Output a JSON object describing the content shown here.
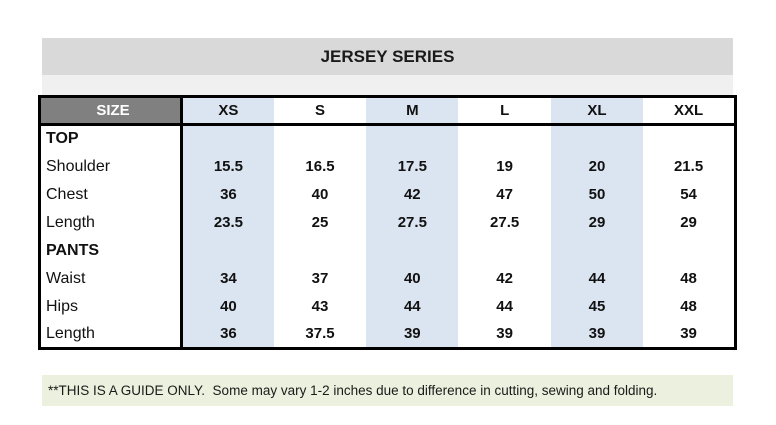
{
  "title": "JERSEY SERIES",
  "table": {
    "header": {
      "label": "SIZE",
      "columns": [
        "XS",
        "S",
        "M",
        "L",
        "XL",
        "XXL"
      ]
    },
    "shaded_columns": [
      "XS",
      "M",
      "XL"
    ],
    "sections": [
      {
        "label": "TOP",
        "rows": [
          {
            "label": "Shoulder",
            "values": [
              "15.5",
              "16.5",
              "17.5",
              "19",
              "20",
              "21.5"
            ]
          },
          {
            "label": "Chest",
            "values": [
              "36",
              "40",
              "42",
              "47",
              "50",
              "54"
            ]
          },
          {
            "label": "Length",
            "values": [
              "23.5",
              "25",
              "27.5",
              "27.5",
              "29",
              "29"
            ]
          }
        ]
      },
      {
        "label": "PANTS",
        "rows": [
          {
            "label": "Waist",
            "values": [
              "34",
              "37",
              "40",
              "42",
              "44",
              "48"
            ]
          },
          {
            "label": "Hips",
            "values": [
              "40",
              "43",
              "44",
              "44",
              "45",
              "48"
            ]
          },
          {
            "label": "Length",
            "values": [
              "36",
              "37.5",
              "39",
              "39",
              "39",
              "39"
            ]
          }
        ]
      }
    ]
  },
  "footer_note": "**THIS IS A GUIDE ONLY.  Some may vary 1-2 inches due to difference in cutting, sewing and folding.",
  "colors": {
    "title_bar_bg": "#d9d9d9",
    "sub_strip_bg": "#f0f0f0",
    "size_cell_bg": "#808080",
    "size_cell_text": "#ffffff",
    "shaded_column_bg": "#dbe5f1",
    "footer_bg": "#ebf1de",
    "table_border": "#000000"
  }
}
